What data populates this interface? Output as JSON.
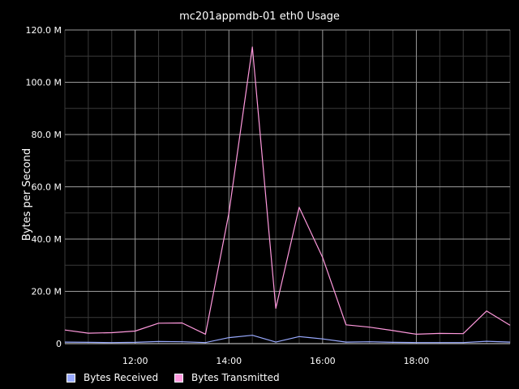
{
  "colors": {
    "background": "#000000",
    "grid_major": "#9a9a9a",
    "grid_minor": "#3a3a3a",
    "text": "#ffffff"
  },
  "chart_data": {
    "type": "line",
    "title": "mc201appmdb-01 eth0 Usage",
    "ylabel": "Bytes per Second",
    "xlabel": "",
    "ylim": [
      0,
      120
    ],
    "xlim": [
      10.5,
      20.0
    ],
    "y_unit_suffix": " M",
    "yticks": [
      0,
      20,
      40,
      60,
      80,
      100,
      120
    ],
    "ytick_labels": [
      "0",
      "20.0 M",
      "40.0 M",
      "60.0 M",
      "80.0 M",
      "100.0 M",
      "120.0 M"
    ],
    "xticks": [
      12,
      14,
      16,
      18
    ],
    "xtick_labels": [
      "12:00",
      "14:00",
      "16:00",
      "18:00"
    ],
    "grid": true,
    "legend_position": "bottom-left",
    "x": [
      10.5,
      11.0,
      11.5,
      12.0,
      12.5,
      13.0,
      13.5,
      14.0,
      14.5,
      15.0,
      15.5,
      16.0,
      16.5,
      17.0,
      17.5,
      18.0,
      18.5,
      19.0,
      19.5,
      20.0
    ],
    "series": [
      {
        "name": "Bytes Received",
        "color": "#99aaff",
        "values": [
          0.6,
          0.5,
          0.4,
          0.5,
          0.8,
          0.7,
          0.4,
          2.3,
          3.2,
          0.6,
          2.7,
          1.8,
          0.6,
          0.7,
          0.5,
          0.4,
          0.4,
          0.4,
          0.9,
          0.6
        ]
      },
      {
        "name": "Bytes Transmitted",
        "color": "#ff99dd",
        "values": [
          5.2,
          4.0,
          4.2,
          4.8,
          7.8,
          7.9,
          3.6,
          50.0,
          113.5,
          13.5,
          52.2,
          33.0,
          7.2,
          6.3,
          5.0,
          3.6,
          3.9,
          3.8,
          12.5,
          7.0
        ]
      }
    ]
  }
}
